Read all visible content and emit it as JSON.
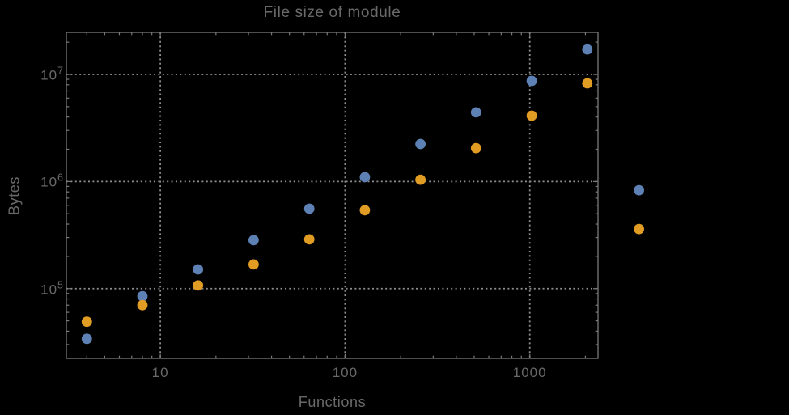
{
  "colors": {
    "background": "#000000",
    "frame": "#7a7a7a",
    "grid": "#8f8f8f",
    "text": "#696969"
  },
  "chart_data": {
    "type": "scatter",
    "title": "File size of module",
    "xlabel": "Functions",
    "ylabel": "Bytes",
    "x_scale": "log",
    "y_scale": "log",
    "grid": true,
    "legend": false,
    "xlim": [
      3.1,
      2340
    ],
    "ylim": [
      22300,
      24700000
    ],
    "x": [
      4,
      8,
      16,
      32,
      64,
      128,
      256,
      512,
      1024,
      2048,
      3900
    ],
    "series": [
      {
        "name": "blue",
        "color": "#5E81B5",
        "values": [
          34000,
          85000,
          151000,
          283000,
          557000,
          1100000,
          2240000,
          4420000,
          8700000,
          17100000,
          830000
        ]
      },
      {
        "name": "orange",
        "color": "#E19C24",
        "values": [
          49000,
          70000,
          107000,
          168000,
          288000,
          540000,
          1040000,
          2050000,
          4120000,
          8260000,
          360000
        ]
      }
    ],
    "x_ticks": [
      {
        "value": 10,
        "label": "10"
      },
      {
        "value": 100,
        "label": "100"
      },
      {
        "value": 1000,
        "label": "1000"
      }
    ],
    "y_ticks": [
      {
        "value": 100000,
        "base": "10",
        "exp": "5"
      },
      {
        "value": 1000000,
        "base": "10",
        "exp": "6"
      },
      {
        "value": 10000000,
        "base": "10",
        "exp": "7"
      }
    ],
    "point_radius": 6.4
  }
}
